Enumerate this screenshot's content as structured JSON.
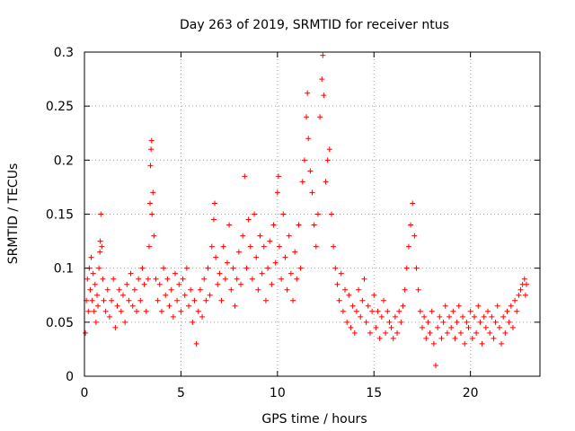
{
  "chart_data": {
    "type": "scatter",
    "title": "Day 263 of 2019, SRMTID for receiver ntus",
    "xlabel": "GPS time / hours",
    "ylabel": "SRMTID / TECUs",
    "xlim": [
      0,
      23.6
    ],
    "ylim": [
      0,
      0.3
    ],
    "xticks": [
      0,
      5,
      10,
      15,
      20
    ],
    "yticks": [
      0,
      0.05,
      0.1,
      0.15,
      0.2,
      0.25,
      0.3
    ],
    "grid": true,
    "marker": "+",
    "color": "#ff0000",
    "series": [
      {
        "name": "SRMTID",
        "points": [
          [
            0.05,
            0.04
          ],
          [
            0.1,
            0.07
          ],
          [
            0.15,
            0.09
          ],
          [
            0.2,
            0.06
          ],
          [
            0.25,
            0.1
          ],
          [
            0.3,
            0.08
          ],
          [
            0.35,
            0.11
          ],
          [
            0.4,
            0.07
          ],
          [
            0.45,
            0.095
          ],
          [
            0.5,
            0.06
          ],
          [
            0.55,
            0.085
          ],
          [
            0.6,
            0.05
          ],
          [
            0.65,
            0.075
          ],
          [
            0.7,
            0.065
          ],
          [
            0.75,
            0.1
          ],
          [
            0.8,
            0.115
          ],
          [
            0.82,
            0.125
          ],
          [
            0.85,
            0.15
          ],
          [
            0.9,
            0.12
          ],
          [
            0.95,
            0.09
          ],
          [
            1.0,
            0.07
          ],
          [
            1.1,
            0.06
          ],
          [
            1.2,
            0.08
          ],
          [
            1.3,
            0.055
          ],
          [
            1.4,
            0.07
          ],
          [
            1.5,
            0.09
          ],
          [
            1.6,
            0.045
          ],
          [
            1.7,
            0.065
          ],
          [
            1.8,
            0.08
          ],
          [
            1.9,
            0.06
          ],
          [
            2.0,
            0.075
          ],
          [
            2.1,
            0.05
          ],
          [
            2.2,
            0.085
          ],
          [
            2.3,
            0.07
          ],
          [
            2.4,
            0.095
          ],
          [
            2.5,
            0.065
          ],
          [
            2.6,
            0.08
          ],
          [
            2.7,
            0.06
          ],
          [
            2.8,
            0.09
          ],
          [
            2.9,
            0.07
          ],
          [
            3.0,
            0.1
          ],
          [
            3.1,
            0.085
          ],
          [
            3.2,
            0.06
          ],
          [
            3.3,
            0.09
          ],
          [
            3.35,
            0.12
          ],
          [
            3.4,
            0.16
          ],
          [
            3.42,
            0.195
          ],
          [
            3.45,
            0.21
          ],
          [
            3.48,
            0.218
          ],
          [
            3.5,
            0.15
          ],
          [
            3.55,
            0.17
          ],
          [
            3.6,
            0.13
          ],
          [
            3.7,
            0.09
          ],
          [
            3.8,
            0.07
          ],
          [
            3.9,
            0.085
          ],
          [
            4.0,
            0.06
          ],
          [
            4.1,
            0.1
          ],
          [
            4.2,
            0.075
          ],
          [
            4.3,
            0.09
          ],
          [
            4.4,
            0.065
          ],
          [
            4.5,
            0.08
          ],
          [
            4.6,
            0.055
          ],
          [
            4.7,
            0.095
          ],
          [
            4.8,
            0.07
          ],
          [
            4.9,
            0.085
          ],
          [
            5.0,
            0.06
          ],
          [
            5.1,
            0.09
          ],
          [
            5.2,
            0.075
          ],
          [
            5.3,
            0.1
          ],
          [
            5.4,
            0.065
          ],
          [
            5.5,
            0.08
          ],
          [
            5.6,
            0.05
          ],
          [
            5.7,
            0.07
          ],
          [
            5.8,
            0.03
          ],
          [
            5.9,
            0.06
          ],
          [
            6.0,
            0.08
          ],
          [
            6.1,
            0.055
          ],
          [
            6.2,
            0.09
          ],
          [
            6.3,
            0.07
          ],
          [
            6.4,
            0.1
          ],
          [
            6.5,
            0.075
          ],
          [
            6.6,
            0.12
          ],
          [
            6.7,
            0.145
          ],
          [
            6.75,
            0.16
          ],
          [
            6.8,
            0.11
          ],
          [
            6.9,
            0.085
          ],
          [
            7.0,
            0.095
          ],
          [
            7.1,
            0.07
          ],
          [
            7.2,
            0.12
          ],
          [
            7.3,
            0.09
          ],
          [
            7.4,
            0.105
          ],
          [
            7.5,
            0.14
          ],
          [
            7.6,
            0.08
          ],
          [
            7.7,
            0.1
          ],
          [
            7.8,
            0.065
          ],
          [
            7.9,
            0.09
          ],
          [
            8.0,
            0.115
          ],
          [
            8.1,
            0.085
          ],
          [
            8.2,
            0.13
          ],
          [
            8.3,
            0.185
          ],
          [
            8.4,
            0.1
          ],
          [
            8.5,
            0.145
          ],
          [
            8.6,
            0.12
          ],
          [
            8.7,
            0.09
          ],
          [
            8.8,
            0.15
          ],
          [
            8.9,
            0.11
          ],
          [
            9.0,
            0.08
          ],
          [
            9.1,
            0.13
          ],
          [
            9.2,
            0.095
          ],
          [
            9.3,
            0.12
          ],
          [
            9.4,
            0.07
          ],
          [
            9.5,
            0.1
          ],
          [
            9.6,
            0.125
          ],
          [
            9.7,
            0.085
          ],
          [
            9.8,
            0.14
          ],
          [
            9.9,
            0.105
          ],
          [
            10.0,
            0.17
          ],
          [
            10.05,
            0.185
          ],
          [
            10.1,
            0.12
          ],
          [
            10.2,
            0.09
          ],
          [
            10.3,
            0.15
          ],
          [
            10.4,
            0.11
          ],
          [
            10.5,
            0.08
          ],
          [
            10.6,
            0.13
          ],
          [
            10.7,
            0.095
          ],
          [
            10.8,
            0.07
          ],
          [
            10.9,
            0.115
          ],
          [
            11.0,
            0.09
          ],
          [
            11.1,
            0.14
          ],
          [
            11.2,
            0.1
          ],
          [
            11.3,
            0.18
          ],
          [
            11.4,
            0.2
          ],
          [
            11.5,
            0.24
          ],
          [
            11.55,
            0.262
          ],
          [
            11.6,
            0.22
          ],
          [
            11.7,
            0.19
          ],
          [
            11.8,
            0.17
          ],
          [
            11.9,
            0.14
          ],
          [
            12.0,
            0.12
          ],
          [
            12.1,
            0.15
          ],
          [
            12.2,
            0.24
          ],
          [
            12.3,
            0.275
          ],
          [
            12.35,
            0.297
          ],
          [
            12.4,
            0.26
          ],
          [
            12.5,
            0.18
          ],
          [
            12.6,
            0.2
          ],
          [
            12.7,
            0.21
          ],
          [
            12.8,
            0.15
          ],
          [
            12.9,
            0.12
          ],
          [
            13.0,
            0.1
          ],
          [
            13.1,
            0.085
          ],
          [
            13.2,
            0.07
          ],
          [
            13.3,
            0.095
          ],
          [
            13.4,
            0.06
          ],
          [
            13.5,
            0.08
          ],
          [
            13.6,
            0.05
          ],
          [
            13.7,
            0.075
          ],
          [
            13.8,
            0.045
          ],
          [
            13.9,
            0.065
          ],
          [
            14.0,
            0.04
          ],
          [
            14.1,
            0.06
          ],
          [
            14.2,
            0.08
          ],
          [
            14.3,
            0.055
          ],
          [
            14.4,
            0.07
          ],
          [
            14.5,
            0.09
          ],
          [
            14.6,
            0.05
          ],
          [
            14.7,
            0.065
          ],
          [
            14.8,
            0.04
          ],
          [
            14.9,
            0.06
          ],
          [
            15.0,
            0.075
          ],
          [
            15.1,
            0.045
          ],
          [
            15.2,
            0.06
          ],
          [
            15.3,
            0.035
          ],
          [
            15.4,
            0.055
          ],
          [
            15.5,
            0.07
          ],
          [
            15.6,
            0.04
          ],
          [
            15.7,
            0.06
          ],
          [
            15.8,
            0.05
          ],
          [
            15.9,
            0.045
          ],
          [
            16.0,
            0.035
          ],
          [
            16.1,
            0.055
          ],
          [
            16.2,
            0.04
          ],
          [
            16.3,
            0.06
          ],
          [
            16.4,
            0.05
          ],
          [
            16.5,
            0.065
          ],
          [
            16.6,
            0.08
          ],
          [
            16.7,
            0.1
          ],
          [
            16.8,
            0.12
          ],
          [
            16.9,
            0.14
          ],
          [
            17.0,
            0.16
          ],
          [
            17.1,
            0.13
          ],
          [
            17.2,
            0.1
          ],
          [
            17.3,
            0.08
          ],
          [
            17.4,
            0.06
          ],
          [
            17.5,
            0.045
          ],
          [
            17.6,
            0.055
          ],
          [
            17.7,
            0.035
          ],
          [
            17.8,
            0.05
          ],
          [
            17.9,
            0.04
          ],
          [
            18.0,
            0.06
          ],
          [
            18.1,
            0.03
          ],
          [
            18.2,
            0.01
          ],
          [
            18.3,
            0.045
          ],
          [
            18.4,
            0.055
          ],
          [
            18.5,
            0.035
          ],
          [
            18.6,
            0.05
          ],
          [
            18.7,
            0.065
          ],
          [
            18.8,
            0.04
          ],
          [
            18.9,
            0.055
          ],
          [
            19.0,
            0.045
          ],
          [
            19.1,
            0.06
          ],
          [
            19.2,
            0.035
          ],
          [
            19.3,
            0.05
          ],
          [
            19.4,
            0.065
          ],
          [
            19.5,
            0.04
          ],
          [
            19.6,
            0.055
          ],
          [
            19.7,
            0.03
          ],
          [
            19.8,
            0.05
          ],
          [
            19.9,
            0.045
          ],
          [
            20.0,
            0.06
          ],
          [
            20.1,
            0.035
          ],
          [
            20.2,
            0.055
          ],
          [
            20.3,
            0.04
          ],
          [
            20.4,
            0.065
          ],
          [
            20.5,
            0.05
          ],
          [
            20.6,
            0.03
          ],
          [
            20.7,
            0.055
          ],
          [
            20.8,
            0.045
          ],
          [
            20.9,
            0.06
          ],
          [
            21.0,
            0.04
          ],
          [
            21.1,
            0.055
          ],
          [
            21.2,
            0.035
          ],
          [
            21.3,
            0.05
          ],
          [
            21.4,
            0.065
          ],
          [
            21.5,
            0.045
          ],
          [
            21.6,
            0.03
          ],
          [
            21.7,
            0.055
          ],
          [
            21.8,
            0.04
          ],
          [
            21.9,
            0.06
          ],
          [
            22.0,
            0.05
          ],
          [
            22.1,
            0.065
          ],
          [
            22.2,
            0.045
          ],
          [
            22.3,
            0.07
          ],
          [
            22.4,
            0.06
          ],
          [
            22.5,
            0.075
          ],
          [
            22.6,
            0.08
          ],
          [
            22.7,
            0.085
          ],
          [
            22.8,
            0.09
          ],
          [
            22.85,
            0.075
          ],
          [
            22.9,
            0.085
          ]
        ]
      }
    ]
  }
}
